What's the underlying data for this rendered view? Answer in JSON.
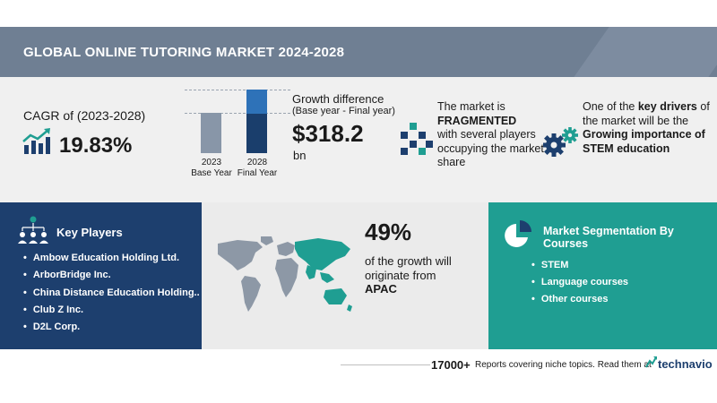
{
  "header": {
    "title": "GLOBAL ONLINE TUTORING MARKET 2024-2028"
  },
  "cagr": {
    "label": "CAGR of (2023-2028)",
    "value": "19.83%"
  },
  "growth_chart": {
    "bar_2023": {
      "year": "2023",
      "label": "Base Year"
    },
    "bar_2028": {
      "year": "2028",
      "label": "Final Year"
    }
  },
  "growth": {
    "title": "Growth difference",
    "subtitle": "(Base year - Final year)",
    "value": "$318.2",
    "unit": "bn"
  },
  "market_structure": {
    "line1": "The market is",
    "emphasis": "FRAGMENTED",
    "line2": "with several players occupying the market share"
  },
  "drivers": {
    "prefix": "One of the",
    "key_drivers": "key drivers",
    "middle": "of the market will be the",
    "driver": "Growing importance of STEM education"
  },
  "key_players": {
    "title": "Key Players",
    "items": [
      "Ambow Education Holding Ltd.",
      "ArborBridge Inc.",
      "China Distance Education Holding..",
      "Club Z Inc.",
      "D2L Corp."
    ]
  },
  "region": {
    "percent": "49%",
    "text": "of the growth will originate from",
    "name": "APAC"
  },
  "segmentation": {
    "title": "Market Segmentation By Courses",
    "items": [
      "STEM",
      "Language courses",
      "Other courses"
    ]
  },
  "footer": {
    "count": "17000+",
    "text": "Reports covering niche topics. Read them at",
    "brand": "technavio"
  },
  "colors": {
    "header": "#6f7f93",
    "navy": "#1d3f6e",
    "teal": "#1f9e92",
    "bar_base": "#8896a8",
    "bar_growth": "#2e72b8"
  }
}
